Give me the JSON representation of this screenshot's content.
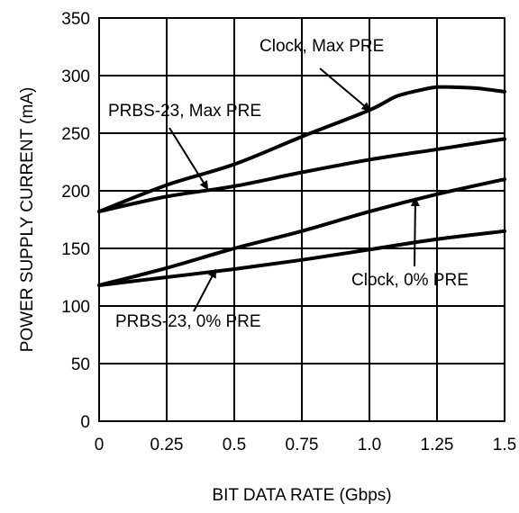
{
  "chart_data": {
    "type": "line",
    "xlabel": "BIT DATA RATE (Gbps)",
    "ylabel": "POWER SUPPLY CURRENT (mA)",
    "xlim": [
      0,
      1.5
    ],
    "ylim": [
      0,
      350
    ],
    "xticks": [
      0,
      0.25,
      0.5,
      0.75,
      1.0,
      1.25,
      1.5
    ],
    "xtick_labels": [
      "0",
      "0.25",
      "0.5",
      "0.75",
      "1.0",
      "1.25",
      "1.5"
    ],
    "yticks": [
      0,
      50,
      100,
      150,
      200,
      250,
      300,
      350
    ],
    "ytick_labels": [
      "0",
      "50",
      "100",
      "150",
      "200",
      "250",
      "300",
      "350"
    ],
    "grid": true,
    "line_color": "#000000",
    "series": [
      {
        "name": "Clock, Max PRE",
        "x": [
          0,
          0.25,
          0.5,
          0.75,
          1.0,
          1.1,
          1.2,
          1.25,
          1.3,
          1.4,
          1.5
        ],
        "y": [
          182,
          205,
          223,
          247,
          270,
          282,
          288,
          290,
          290,
          289,
          286
        ]
      },
      {
        "name": "PRBS-23, Max PRE",
        "x": [
          0,
          0.25,
          0.5,
          0.75,
          1.0,
          1.25,
          1.5
        ],
        "y": [
          182,
          195,
          204,
          216,
          227,
          236,
          245
        ]
      },
      {
        "name": "Clock, 0% PRE",
        "x": [
          0,
          0.25,
          0.5,
          0.75,
          1.0,
          1.25,
          1.5
        ],
        "y": [
          118,
          133,
          150,
          165,
          182,
          197,
          210
        ]
      },
      {
        "name": "PRBS-23, 0% PRE",
        "x": [
          0,
          0.25,
          0.5,
          0.75,
          1.0,
          1.25,
          1.5
        ],
        "y": [
          118,
          125,
          132,
          140,
          149,
          158,
          165
        ]
      }
    ],
    "annotations": [
      {
        "text": "Clock, Max PRE",
        "series": 0,
        "arrow_to": [
          1.0,
          270
        ]
      },
      {
        "text": "PRBS-23, Max PRE",
        "series": 1,
        "arrow_to": [
          0.4,
          202
        ]
      },
      {
        "text": "Clock, 0% PRE",
        "series": 2,
        "arrow_to": [
          1.17,
          193
        ]
      },
      {
        "text": "PRBS-23, 0% PRE",
        "series": 3,
        "arrow_to": [
          0.43,
          131
        ]
      }
    ]
  }
}
